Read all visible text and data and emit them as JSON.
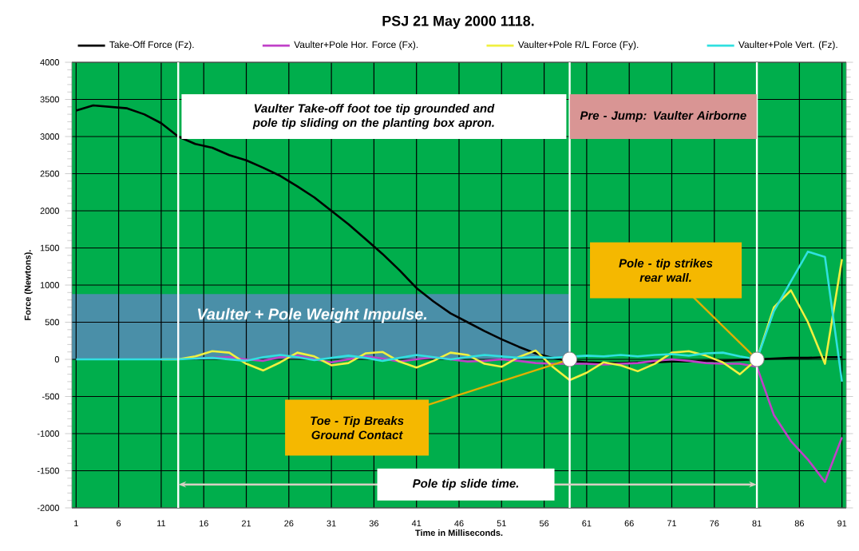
{
  "chart_data": {
    "type": "line",
    "title": "PSJ 21 May 2000   1118.",
    "xlabel": "Time in Milliseconds.",
    "ylabel": "Force (Newtons).",
    "x": [
      1,
      3,
      5,
      7,
      9,
      11,
      13,
      15,
      17,
      19,
      21,
      23,
      25,
      27,
      29,
      31,
      33,
      35,
      37,
      39,
      41,
      43,
      45,
      47,
      49,
      51,
      53,
      55,
      57,
      59,
      61,
      63,
      65,
      67,
      69,
      71,
      73,
      75,
      77,
      79,
      81,
      83,
      85,
      87,
      89,
      91
    ],
    "series": [
      {
        "name": "Take-Off Force  (Fz).",
        "color": "#000000",
        "values": [
          3350,
          3420,
          3400,
          3380,
          3300,
          3180,
          3000,
          2900,
          2850,
          2750,
          2680,
          2580,
          2470,
          2330,
          2180,
          2000,
          1820,
          1620,
          1420,
          1200,
          960,
          780,
          620,
          500,
          380,
          270,
          170,
          80,
          20,
          -20,
          -40,
          -50,
          -50,
          -40,
          -40,
          -30,
          -30,
          -20,
          -20,
          -10,
          0,
          10,
          20,
          20,
          30,
          30
        ]
      },
      {
        "name": "Vaulter+Pole Hor. Force  (Fx).",
        "color": "#c040c8",
        "values": [
          null,
          null,
          null,
          null,
          null,
          null,
          null,
          10,
          20,
          30,
          0,
          -20,
          30,
          50,
          0,
          -40,
          0,
          40,
          10,
          -30,
          0,
          30,
          0,
          -30,
          -20,
          0,
          -20,
          -50,
          -60,
          -60,
          -60,
          -70,
          -60,
          -50,
          -20,
          0,
          -20,
          -50,
          -60,
          -60,
          -100,
          -750,
          -1100,
          -1350,
          -1650,
          -1050
        ]
      },
      {
        "name": "Vaulter+Pole R/L Force  (Fy).",
        "color": "#f0f040",
        "values": [
          null,
          null,
          null,
          null,
          null,
          0,
          0,
          40,
          110,
          90,
          -60,
          -150,
          -40,
          90,
          40,
          -80,
          -50,
          80,
          100,
          -30,
          -110,
          -20,
          90,
          60,
          -60,
          -100,
          30,
          120,
          -100,
          -280,
          -180,
          -40,
          -80,
          -160,
          -60,
          90,
          110,
          50,
          -40,
          -200,
          0,
          700,
          930,
          500,
          -60,
          1350
        ]
      },
      {
        "name": "Vaulter+Pole Vert. (Fz).",
        "color": "#30e0e0",
        "values": [
          0,
          0,
          0,
          0,
          0,
          0,
          0,
          10,
          20,
          0,
          -20,
          30,
          60,
          30,
          -10,
          20,
          50,
          20,
          -20,
          20,
          60,
          30,
          0,
          30,
          60,
          40,
          20,
          30,
          20,
          null,
          50,
          40,
          60,
          40,
          60,
          70,
          50,
          80,
          90,
          40,
          0,
          650,
          1050,
          1450,
          1380,
          -300
        ]
      }
    ],
    "xlim": [
      0.5,
      91.5
    ],
    "xticks": [
      1,
      6,
      11,
      16,
      21,
      26,
      31,
      36,
      41,
      46,
      51,
      56,
      61,
      66,
      71,
      76,
      81,
      86,
      91
    ],
    "ylim": [
      -2000,
      4000
    ],
    "yticks": [
      -2000,
      -1500,
      -1000,
      -500,
      0,
      500,
      1000,
      1500,
      2000,
      2500,
      3000,
      3500,
      4000
    ],
    "grid": true,
    "legend": "top",
    "marker": "none",
    "line_style": "solid",
    "ref_lines": [
      {
        "axis": "x",
        "value": 13,
        "color": "#ffffff"
      },
      {
        "axis": "x",
        "value": 59,
        "color": "#ffffff"
      },
      {
        "axis": "x",
        "value": 81,
        "color": "#ffffff"
      }
    ],
    "annotations": [
      "Vaulter Take-off foot toe tip grounded and pole tip sliding on the planting box apron.",
      "Pre - Jump: Vaulter Airborne",
      "Vaulter + Pole Weight Impulse.",
      {
        "text": "Toe - Tip Breaks Ground Contact",
        "x": 59,
        "y": 0
      },
      {
        "text": "Pole - tip strikes rear wall.",
        "x": 81,
        "y": 0
      },
      "Pole tip slide time."
    ]
  }
}
